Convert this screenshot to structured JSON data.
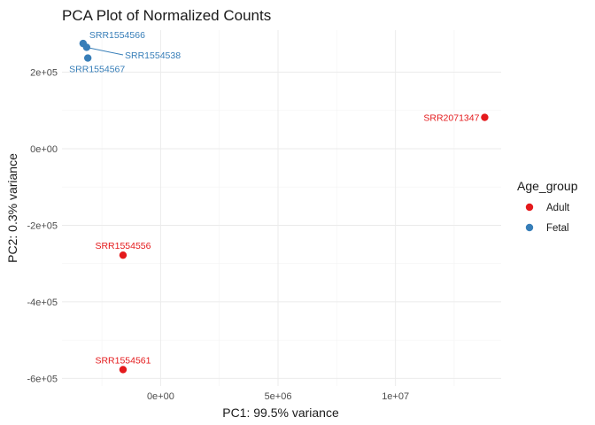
{
  "chart_data": {
    "type": "scatter",
    "title": "PCA Plot of Normalized Counts",
    "xlabel": "PC1: 99.5% variance",
    "ylabel": "PC2: 0.3% variance",
    "xlim": [
      -4200000,
      14500000
    ],
    "ylim": [
      -620000,
      310000
    ],
    "x_major_ticks": [
      0,
      5000000,
      10000000
    ],
    "x_tick_labels": [
      "0e+00",
      "5e+06",
      "1e+07"
    ],
    "x_minor_ticks": [
      -2500000,
      2500000,
      7500000,
      12500000
    ],
    "y_major_ticks": [
      200000,
      0,
      -200000,
      -400000,
      -600000
    ],
    "y_tick_labels": [
      "2e+05",
      "0e+00",
      "-2e+05",
      "-4e+05",
      "-6e+05"
    ],
    "y_minor_ticks": [
      100000,
      -100000,
      -300000,
      -500000
    ],
    "grid": true,
    "legend": {
      "title": "Age_group",
      "placement": "right",
      "entries": [
        {
          "label": "Adult",
          "color": "#e41a1c"
        },
        {
          "label": "Fetal",
          "color": "#377eb8"
        }
      ]
    },
    "points": [
      {
        "label": "SRR1554566",
        "x": -3300000,
        "y": 275000,
        "group": "Fetal"
      },
      {
        "label": "SRR1554538",
        "x": -3150000,
        "y": 265000,
        "group": "Fetal"
      },
      {
        "label": "SRR1554567",
        "x": -3100000,
        "y": 237000,
        "group": "Fetal"
      },
      {
        "label": "SRR2071347",
        "x": 13800000,
        "y": 82000,
        "group": "Adult"
      },
      {
        "label": "SRR1554556",
        "x": -1600000,
        "y": -278000,
        "group": "Adult"
      },
      {
        "label": "SRR1554561",
        "x": -1600000,
        "y": -577000,
        "group": "Adult"
      }
    ]
  }
}
